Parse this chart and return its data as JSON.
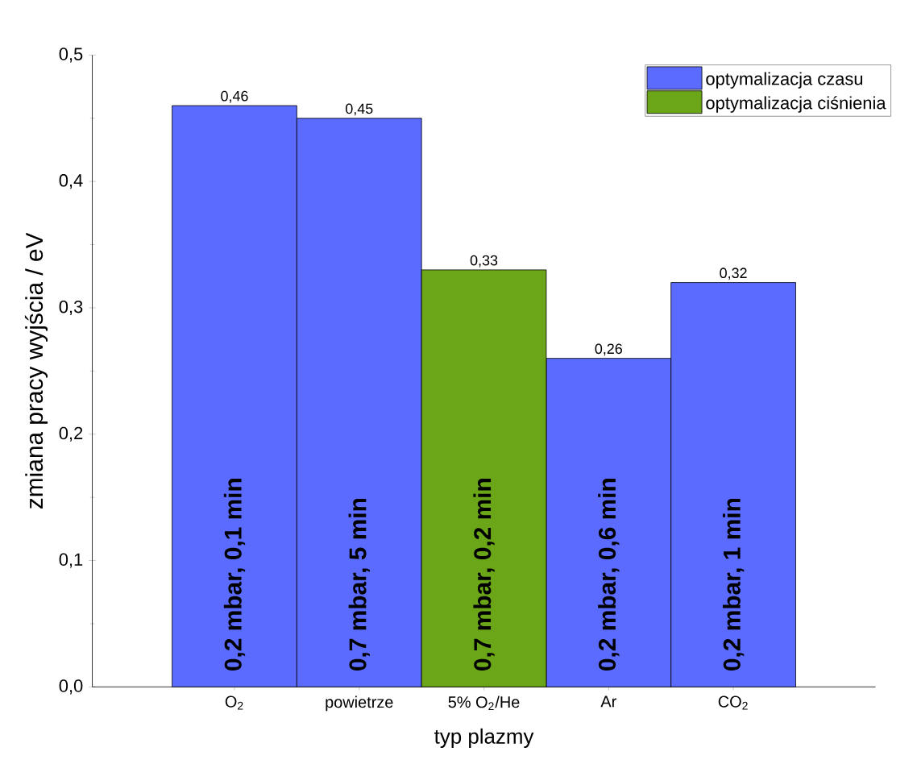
{
  "chart_data": {
    "type": "bar",
    "xlabel": "typ plazmy",
    "ylabel": "zmiana pracy wyjścia / eV",
    "categories": [
      "O$_{2}$",
      "powietrze",
      "5% O$_{2}$/He",
      "Ar",
      "CO$_{2}$"
    ],
    "series": [
      {
        "name": "optymalizacja czasu",
        "color": "#5b6bfe",
        "values": [
          0.46,
          0.45,
          null,
          0.26,
          0.32
        ],
        "value_labels": [
          "0,46",
          "0,45",
          null,
          "0,26",
          "0,32"
        ]
      },
      {
        "name": "optymalizacja ciśnienia",
        "color": "#6aa617",
        "values": [
          null,
          null,
          0.33,
          null,
          null
        ],
        "value_labels": [
          null,
          null,
          "0,33",
          null,
          null
        ]
      }
    ],
    "ylim": [
      0,
      0.5
    ],
    "yticks": [
      {
        "value": 0,
        "label": "0,0"
      },
      {
        "value": 0.1,
        "label": "0,1"
      },
      {
        "value": 0.2,
        "label": "0,2"
      },
      {
        "value": 0.3,
        "label": "0,3"
      },
      {
        "value": 0.4,
        "label": "0,4"
      },
      {
        "value": 0.5,
        "label": "0,5"
      }
    ],
    "annotations": [
      "0,2 mbar, 0,1 min",
      "0,7 mbar, 5 min",
      "0,7 mbar, 0,2 min",
      "0,2 mbar, 0,6 min",
      "0,2 mbar, 1 min"
    ],
    "legend": "top right",
    "grid": false
  }
}
